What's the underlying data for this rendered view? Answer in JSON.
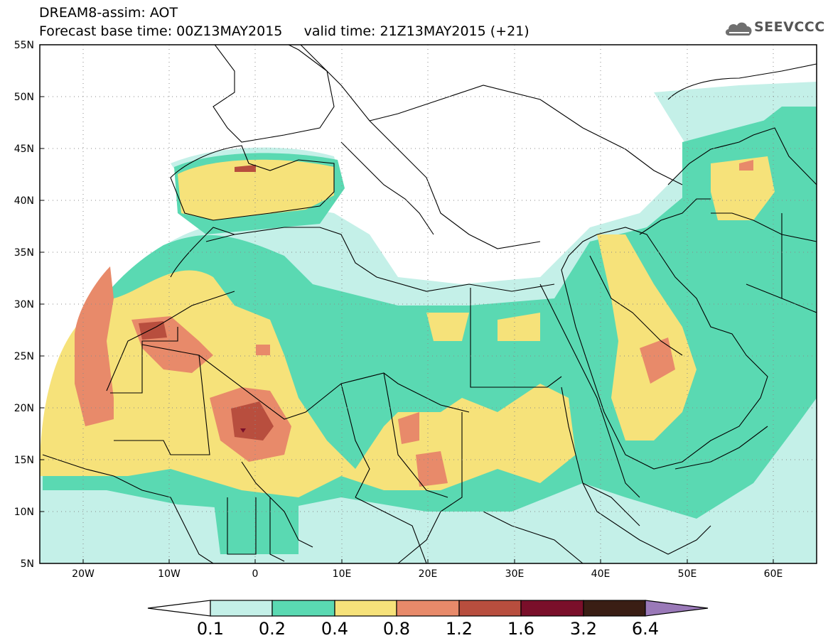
{
  "header": {
    "line1": "DREAM8-assim: AOT",
    "line2": "Forecast base time: 00Z13MAY2015     valid time: 21Z13MAY2015 (+21)"
  },
  "logo": {
    "text": "SEEVCCC",
    "icon": "cloud-icon"
  },
  "map": {
    "lat_labels": [
      "55N",
      "50N",
      "45N",
      "40N",
      "35N",
      "30N",
      "25N",
      "20N",
      "15N",
      "10N",
      "5N"
    ],
    "lon_labels": [
      "20W",
      "10W",
      "0",
      "10E",
      "20E",
      "30E",
      "40E",
      "50E",
      "60E"
    ],
    "lat_range": [
      5,
      55
    ],
    "lon_range": [
      -25,
      65
    ],
    "grid": "dotted"
  },
  "colorbar": {
    "labels": [
      "0.1",
      "0.2",
      "0.4",
      "0.8",
      "1.2",
      "1.6",
      "3.2",
      "6.4"
    ],
    "colors": [
      "#ffffff",
      "#c4f0e8",
      "#5ad9b2",
      "#f6e27a",
      "#e88a6a",
      "#b84e3e",
      "#7a0f2a",
      "#3a1e14",
      "#9a79b8"
    ]
  }
}
